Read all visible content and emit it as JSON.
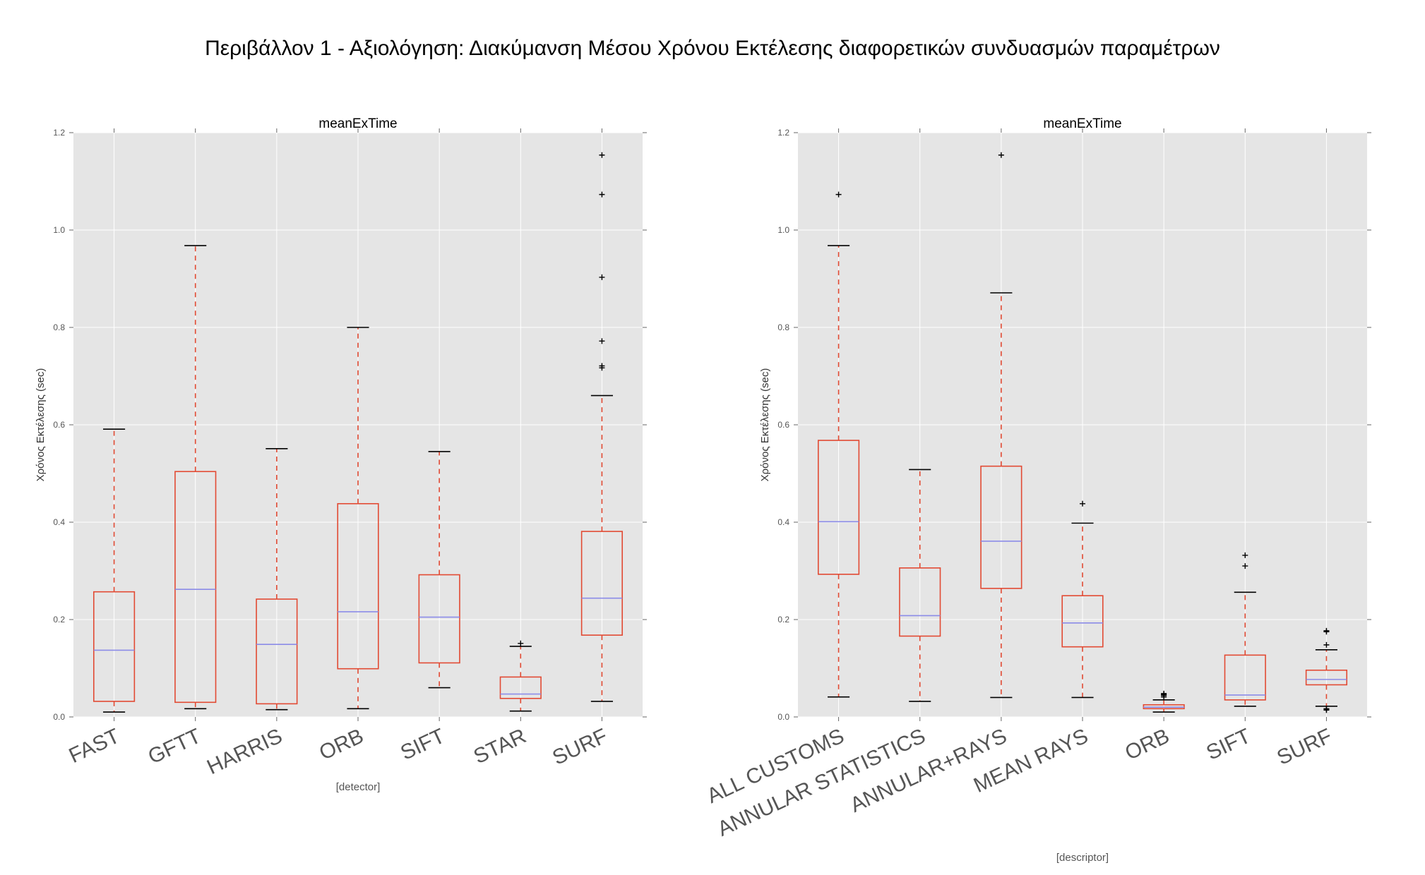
{
  "figure": {
    "suptitle": "Περιβάλλον 1 - Αξιολόγηση: Διακύμανση Μέσου Χρόνου Εκτέλεσης διαφορετικών συνδυασμών παραμέτρων"
  },
  "colors": {
    "panel_bg": "#e5e5e5",
    "grid": "#ffffff",
    "box": "#e24a33",
    "median": "#8c8ce8",
    "whisker": "#e24a33",
    "cap": "#000000",
    "flier": "#000000"
  },
  "chart_data": [
    {
      "type": "box",
      "title": "meanExTime",
      "xlabel": "[detector]",
      "ylabel": "Χρόνος Εκτέλεσης (sec)",
      "ylim": [
        0.0,
        1.2
      ],
      "yticks": [
        "0.0",
        "0.2",
        "0.4",
        "0.6",
        "0.8",
        "1.0",
        "1.2"
      ],
      "grid": true,
      "categories": [
        "FAST",
        "GFTT",
        "HARRIS",
        "ORB",
        "SIFT",
        "STAR",
        "SURF"
      ],
      "boxes": [
        {
          "whislo": 0.01,
          "q1": 0.032,
          "med": 0.137,
          "q3": 0.257,
          "whishi": 0.591,
          "fliers": []
        },
        {
          "whislo": 0.017,
          "q1": 0.03,
          "med": 0.262,
          "q3": 0.504,
          "whishi": 0.968,
          "fliers": []
        },
        {
          "whislo": 0.015,
          "q1": 0.027,
          "med": 0.149,
          "q3": 0.242,
          "whishi": 0.551,
          "fliers": []
        },
        {
          "whislo": 0.017,
          "q1": 0.099,
          "med": 0.216,
          "q3": 0.438,
          "whishi": 0.8,
          "fliers": []
        },
        {
          "whislo": 0.06,
          "q1": 0.111,
          "med": 0.205,
          "q3": 0.292,
          "whishi": 0.545,
          "fliers": []
        },
        {
          "whislo": 0.012,
          "q1": 0.038,
          "med": 0.047,
          "q3": 0.082,
          "whishi": 0.145,
          "fliers": [
            0.151
          ]
        },
        {
          "whislo": 0.032,
          "q1": 0.168,
          "med": 0.244,
          "q3": 0.381,
          "whishi": 0.66,
          "fliers": [
            0.717,
            0.721,
            0.772,
            0.903,
            1.073,
            1.154
          ]
        }
      ]
    },
    {
      "type": "box",
      "title": "meanExTime",
      "xlabel": "[descriptor]",
      "ylabel": "Χρόνος Εκτέλεσης (sec)",
      "ylim": [
        0.0,
        1.2
      ],
      "yticks": [
        "0.0",
        "0.2",
        "0.4",
        "0.6",
        "0.8",
        "1.0",
        "1.2"
      ],
      "grid": true,
      "categories": [
        "ALL CUSTOMS",
        "ANNULAR STATISTICS",
        "ANNULAR+RAYS",
        "MEAN RAYS",
        "ORB",
        "SIFT",
        "SURF"
      ],
      "boxes": [
        {
          "whislo": 0.041,
          "q1": 0.293,
          "med": 0.401,
          "q3": 0.568,
          "whishi": 0.968,
          "fliers": [
            1.073
          ]
        },
        {
          "whislo": 0.032,
          "q1": 0.166,
          "med": 0.208,
          "q3": 0.306,
          "whishi": 0.508,
          "fliers": []
        },
        {
          "whislo": 0.04,
          "q1": 0.264,
          "med": 0.361,
          "q3": 0.515,
          "whishi": 0.871,
          "fliers": [
            1.154
          ]
        },
        {
          "whislo": 0.04,
          "q1": 0.144,
          "med": 0.193,
          "q3": 0.249,
          "whishi": 0.398,
          "fliers": [
            0.438
          ]
        },
        {
          "whislo": 0.01,
          "q1": 0.017,
          "med": 0.02,
          "q3": 0.025,
          "whishi": 0.035,
          "fliers": [
            0.041,
            0.044,
            0.046,
            0.048
          ]
        },
        {
          "whislo": 0.022,
          "q1": 0.035,
          "med": 0.045,
          "q3": 0.127,
          "whishi": 0.256,
          "fliers": [
            0.31,
            0.332
          ]
        },
        {
          "whislo": 0.022,
          "q1": 0.066,
          "med": 0.077,
          "q3": 0.096,
          "whishi": 0.138,
          "fliers": [
            0.014,
            0.016,
            0.017,
            0.148,
            0.175,
            0.177
          ]
        }
      ]
    }
  ]
}
